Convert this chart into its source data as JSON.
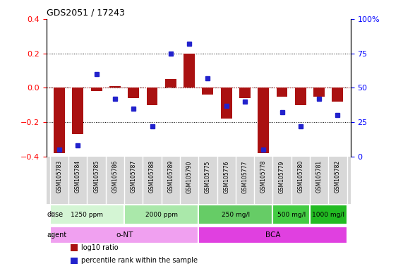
{
  "title": "GDS2051 / 17243",
  "samples": [
    "GSM105783",
    "GSM105784",
    "GSM105785",
    "GSM105786",
    "GSM105787",
    "GSM105788",
    "GSM105789",
    "GSM105790",
    "GSM105775",
    "GSM105776",
    "GSM105777",
    "GSM105778",
    "GSM105779",
    "GSM105780",
    "GSM105781",
    "GSM105782"
  ],
  "log10_ratio": [
    -0.38,
    -0.27,
    -0.02,
    0.01,
    -0.06,
    -0.1,
    0.05,
    0.2,
    -0.04,
    -0.18,
    -0.06,
    -0.38,
    -0.05,
    -0.1,
    -0.05,
    -0.08
  ],
  "percentile_rank": [
    5,
    8,
    60,
    42,
    35,
    22,
    75,
    82,
    57,
    37,
    40,
    5,
    32,
    22,
    42,
    30
  ],
  "ylim_left": [
    -0.4,
    0.4
  ],
  "ylim_right": [
    0,
    100
  ],
  "yticks_left": [
    -0.4,
    -0.2,
    0.0,
    0.2,
    0.4
  ],
  "yticks_right": [
    0,
    25,
    50,
    75,
    100
  ],
  "ytick_labels_right": [
    "0",
    "25",
    "50",
    "75",
    "100%"
  ],
  "dose_groups": [
    {
      "label": "1250 ppm",
      "start": 0,
      "end": 4,
      "color": "#d4f5d4"
    },
    {
      "label": "2000 ppm",
      "start": 4,
      "end": 8,
      "color": "#aae8aa"
    },
    {
      "label": "250 mg/l",
      "start": 8,
      "end": 12,
      "color": "#66cc66"
    },
    {
      "label": "500 mg/l",
      "start": 12,
      "end": 14,
      "color": "#44cc44"
    },
    {
      "label": "1000 mg/l",
      "start": 14,
      "end": 16,
      "color": "#22bb22"
    }
  ],
  "agent_groups": [
    {
      "label": "o-NT",
      "start": 0,
      "end": 8,
      "color": "#f0a0f0"
    },
    {
      "label": "BCA",
      "start": 8,
      "end": 16,
      "color": "#e040e0"
    }
  ],
  "bar_color": "#aa1111",
  "dot_color": "#2222cc",
  "bar_width": 0.6,
  "legend_items": [
    {
      "color": "#aa1111",
      "label": "log10 ratio"
    },
    {
      "color": "#2222cc",
      "label": "percentile rank within the sample"
    }
  ],
  "grid_color": "#000000",
  "zero_line_color": "#cc4444",
  "bg_color": "#ffffff"
}
